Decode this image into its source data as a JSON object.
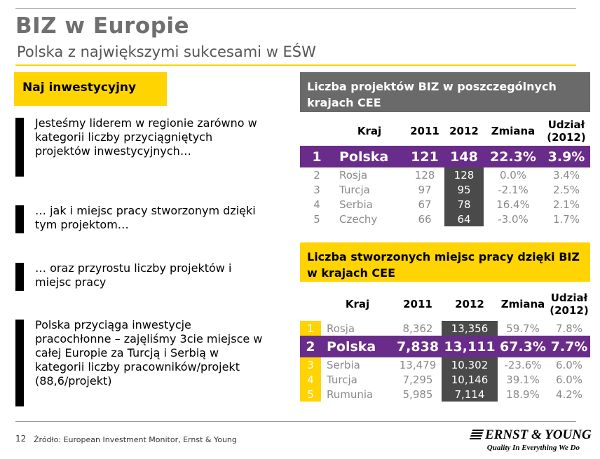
{
  "slide": {
    "title": "BIZ w Europie",
    "subtitle": "Polska z największymi sukcesami w EŚW",
    "badge": "Naj inwestycyjny",
    "bullets": [
      "Jesteśmy liderem w regionie zarówno w kategorii liczby przyciągniętych projektów inwestycyjnych…",
      "… jak i miejsc pracy stworzonym dzięki tym projektom…",
      "… oraz przyrostu liczby projektów i miejsc pracy",
      "Polska przyciąga inwestycje pracochłonne – zajęliśmy 3cie miejsce w całej Europie za Turcją i Serbią w kategorii liczby pracowników/projekt (88,6/projekt)"
    ],
    "page_number": "12",
    "source": "Źródło: European Investment Monitor, Ernst & Young",
    "logo": {
      "name": "ERNST & YOUNG",
      "tagline": "Quality In Everything We Do"
    }
  },
  "table1": {
    "title": "Liczba projektów BIZ w poszczególnych krajach CEE",
    "headers": {
      "kraj": "Kraj",
      "y2011": "2011",
      "y2012": "2012",
      "zmiana": "Zmiana",
      "udzial_1": "Udział",
      "udzial_2": "(2012)"
    },
    "rows": [
      {
        "rank": "1",
        "kraj": "Polska",
        "y2011": "121",
        "y2012": "148",
        "zmiana": "22.3%",
        "udzial": "3.9%"
      },
      {
        "rank": "2",
        "kraj": "Rosja",
        "y2011": "128",
        "y2012": "128",
        "zmiana": "0.0%",
        "udzial": "3.4%"
      },
      {
        "rank": "3",
        "kraj": "Turcja",
        "y2011": "97",
        "y2012": "95",
        "zmiana": "-2.1%",
        "udzial": "2.5%"
      },
      {
        "rank": "4",
        "kraj": "Serbia",
        "y2011": "67",
        "y2012": "78",
        "zmiana": "16.4%",
        "udzial": "2.1%"
      },
      {
        "rank": "5",
        "kraj": "Czechy",
        "y2011": "66",
        "y2012": "64",
        "zmiana": "-3.0%",
        "udzial": "1.7%"
      }
    ]
  },
  "table2": {
    "title": "Liczba stworzonych miejsc pracy dzięki BIZ w krajach CEE",
    "headers": {
      "kraj": "Kraj",
      "y2011": "2011",
      "y2012": "2012",
      "zmiana": "Zmiana",
      "udzial_1": "Udział",
      "udzial_2": "(2012)"
    },
    "rows": [
      {
        "rank": "1",
        "kraj": "Rosja",
        "y2011": "8,362",
        "y2012": "13,356",
        "zmiana": "59.7%",
        "udzial": "7.8%"
      },
      {
        "rank": "2",
        "kraj": "Polska",
        "y2011": "7,838",
        "y2012": "13,111",
        "zmiana": "67.3%",
        "udzial": "7.7%"
      },
      {
        "rank": "3",
        "kraj": "Serbia",
        "y2011": "13,479",
        "y2012": "10.302",
        "zmiana": "-23.6%",
        "udzial": "6.0%"
      },
      {
        "rank": "4",
        "kraj": "Turcja",
        "y2011": "7,295",
        "y2012": "10,146",
        "zmiana": "39.1%",
        "udzial": "6.0%"
      },
      {
        "rank": "5",
        "kraj": "Rumunia",
        "y2011": "5,985",
        "y2012": "7,114",
        "zmiana": "18.9%",
        "udzial": "4.2%"
      }
    ]
  }
}
